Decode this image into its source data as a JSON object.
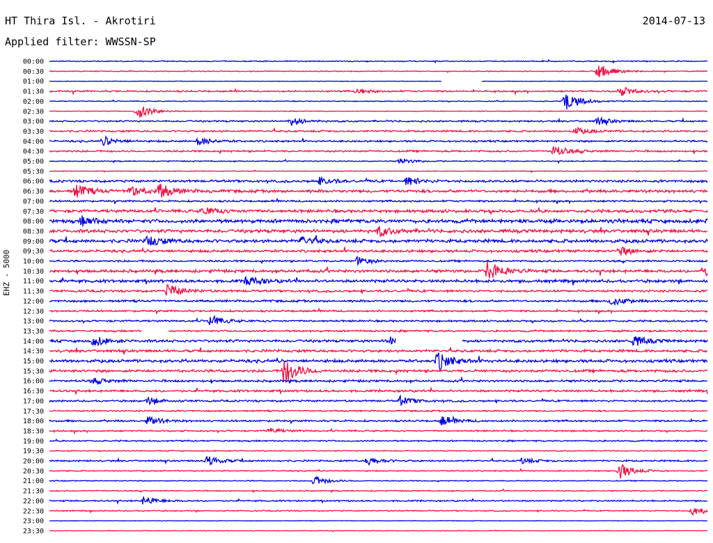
{
  "header": {
    "station": "HT Thira Isl. - Akrotiri",
    "date": "2014-07-13",
    "filter": "Applied filter: WWSSN-SP"
  },
  "channel": "EHZ - 5000",
  "colors": {
    "odd_trace": "#0000dd",
    "even_trace": "#ee1144",
    "background": "#ffffff"
  },
  "chart_data": {
    "type": "line",
    "description_kind": "helicorder",
    "row_labels": [
      "00:00",
      "00:30",
      "01:00",
      "01:30",
      "02:00",
      "02:30",
      "03:00",
      "03:30",
      "04:00",
      "04:30",
      "05:00",
      "05:30",
      "06:00",
      "06:30",
      "07:00",
      "07:30",
      "08:00",
      "08:30",
      "09:00",
      "09:30",
      "10:00",
      "10:30",
      "11:00",
      "11:30",
      "12:00",
      "12:30",
      "13:00",
      "13:30",
      "14:00",
      "14:30",
      "15:00",
      "15:30",
      "16:00",
      "16:30",
      "17:00",
      "17:30",
      "18:00",
      "18:30",
      "19:00",
      "19:30",
      "20:00",
      "20:30",
      "21:00",
      "21:30",
      "22:00",
      "22:30",
      "23:00",
      "23:30"
    ],
    "row_colors": [
      "blue",
      "red"
    ],
    "trace_span_minutes": 30,
    "noise_level": [
      0.6,
      0.5,
      0.3,
      0.9,
      0.5,
      0.4,
      0.9,
      1.0,
      1.0,
      1.0,
      0.6,
      0.4,
      1.3,
      1.6,
      1.0,
      1.6,
      2.0,
      1.8,
      1.8,
      1.4,
      1.0,
      1.6,
      1.6,
      1.2,
      1.2,
      1.0,
      1.0,
      1.0,
      1.4,
      1.4,
      1.6,
      1.4,
      1.2,
      1.2,
      1.0,
      0.8,
      1.0,
      0.8,
      0.8,
      0.5,
      0.9,
      0.6,
      0.5,
      0.6,
      0.8,
      0.6,
      0.3,
      0.3
    ],
    "gaps": [
      {
        "row": "01:00",
        "from_min": 17.9,
        "to_min": 19.7
      },
      {
        "row": "13:30",
        "from_min": 4.2,
        "to_min": 5.4
      },
      {
        "row": "14:00",
        "from_min": 15.8,
        "to_min": 18.8
      }
    ],
    "events": [
      {
        "row": "00:30",
        "min": 25.0,
        "amp": 12
      },
      {
        "row": "01:30",
        "min": 14.0,
        "amp": 4
      },
      {
        "row": "01:30",
        "min": 26.0,
        "amp": 7
      },
      {
        "row": "02:00",
        "min": 23.5,
        "amp": 16
      },
      {
        "row": "02:30",
        "min": 4.0,
        "amp": 12
      },
      {
        "row": "03:00",
        "min": 11.0,
        "amp": 6
      },
      {
        "row": "03:00",
        "min": 25.0,
        "amp": 5
      },
      {
        "row": "03:30",
        "min": 24.0,
        "amp": 5
      },
      {
        "row": "04:00",
        "min": 2.5,
        "amp": 6
      },
      {
        "row": "04:00",
        "min": 6.8,
        "amp": 6
      },
      {
        "row": "04:30",
        "min": 23.0,
        "amp": 8
      },
      {
        "row": "05:00",
        "min": 16.0,
        "amp": 4
      },
      {
        "row": "06:00",
        "min": 12.3,
        "amp": 5
      },
      {
        "row": "06:00",
        "min": 16.3,
        "amp": 6
      },
      {
        "row": "06:30",
        "min": 1.2,
        "amp": 10
      },
      {
        "row": "06:30",
        "min": 3.7,
        "amp": 8
      },
      {
        "row": "06:30",
        "min": 5.0,
        "amp": 10
      },
      {
        "row": "07:30",
        "min": 7.0,
        "amp": 6
      },
      {
        "row": "08:00",
        "min": 1.5,
        "amp": 7
      },
      {
        "row": "08:00",
        "min": 30.0,
        "amp": 12
      },
      {
        "row": "08:30",
        "min": 15.0,
        "amp": 7
      },
      {
        "row": "09:00",
        "min": 4.5,
        "amp": 8
      },
      {
        "row": "09:00",
        "min": 11.5,
        "amp": 6
      },
      {
        "row": "09:30",
        "min": 26.0,
        "amp": 6
      },
      {
        "row": "10:00",
        "min": 14.0,
        "amp": 6
      },
      {
        "row": "10:30",
        "min": 20.0,
        "amp": 16
      },
      {
        "row": "10:30",
        "min": 29.8,
        "amp": 7
      },
      {
        "row": "11:00",
        "min": 9.0,
        "amp": 7
      },
      {
        "row": "11:30",
        "min": 5.4,
        "amp": 10
      },
      {
        "row": "12:00",
        "min": 25.6,
        "amp": 7
      },
      {
        "row": "13:00",
        "min": 7.3,
        "amp": 8
      },
      {
        "row": "14:00",
        "min": 2.0,
        "amp": 7
      },
      {
        "row": "14:00",
        "min": 15.5,
        "amp": 8
      },
      {
        "row": "14:00",
        "min": 26.6,
        "amp": 8
      },
      {
        "row": "15:00",
        "min": 17.7,
        "amp": 14
      },
      {
        "row": "15:30",
        "min": 10.7,
        "amp": 20
      },
      {
        "row": "16:00",
        "min": 2.0,
        "amp": 4
      },
      {
        "row": "17:00",
        "min": 4.5,
        "amp": 5
      },
      {
        "row": "17:00",
        "min": 16.0,
        "amp": 6
      },
      {
        "row": "18:00",
        "min": 4.5,
        "amp": 6
      },
      {
        "row": "18:00",
        "min": 17.9,
        "amp": 7
      },
      {
        "row": "18:30",
        "min": 10.0,
        "amp": 4
      },
      {
        "row": "20:00",
        "min": 7.2,
        "amp": 7
      },
      {
        "row": "20:00",
        "min": 14.5,
        "amp": 6
      },
      {
        "row": "20:00",
        "min": 21.5,
        "amp": 4
      },
      {
        "row": "20:30",
        "min": 26.0,
        "amp": 12
      },
      {
        "row": "21:00",
        "min": 12.0,
        "amp": 8
      },
      {
        "row": "22:00",
        "min": 4.3,
        "amp": 6
      },
      {
        "row": "22:30",
        "min": 29.3,
        "amp": 7
      }
    ]
  }
}
